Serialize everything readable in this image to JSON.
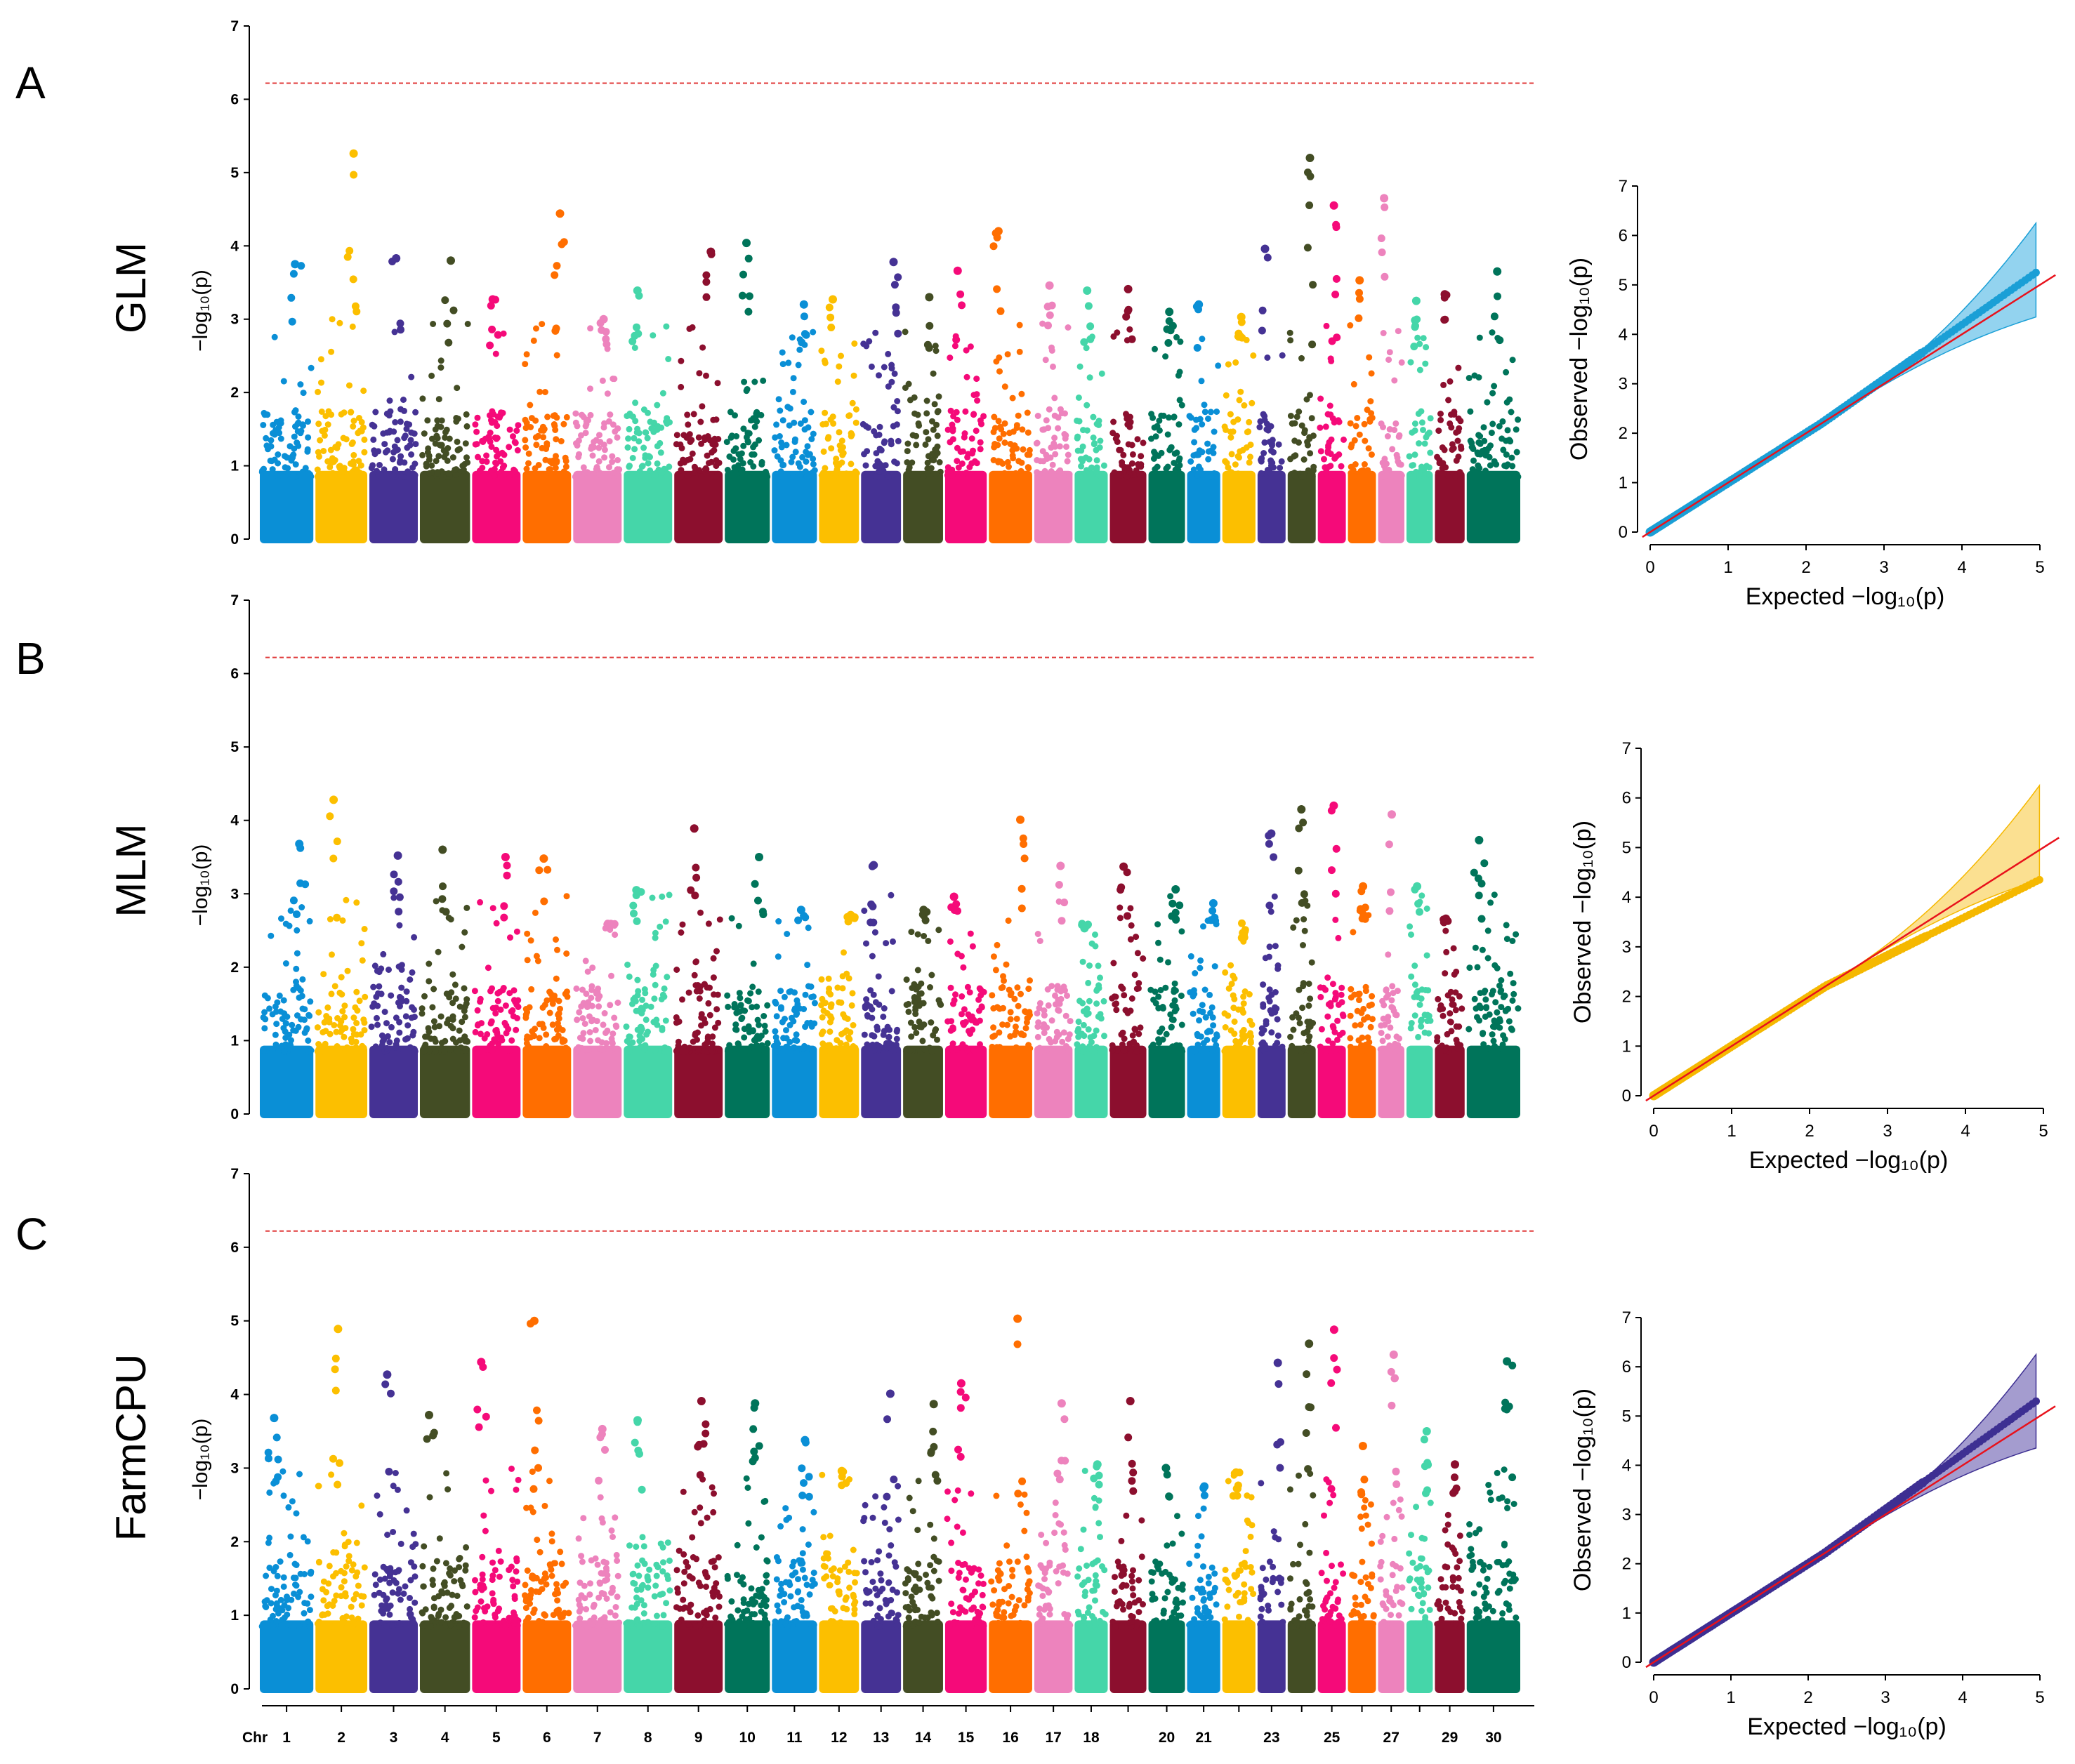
{
  "figure": {
    "chromosome_axis_title": "Chr",
    "chromosome_labels": [
      "1",
      "2",
      "3",
      "4",
      "5",
      "6",
      "7",
      "8",
      "9",
      "10",
      "11",
      "12",
      "13",
      "14",
      "15",
      "16",
      "17",
      "18",
      "",
      "20",
      "21",
      "",
      "23",
      "",
      "25",
      "",
      "27",
      "",
      "29",
      "30",
      ""
    ],
    "colors": [
      "#0a8fd6",
      "#fcbf00",
      "#453294",
      "#434d24",
      "#f50a79",
      "#ff6e00",
      "#ed83bd",
      "#45d6a9",
      "#8c0f2e",
      "#00745a"
    ],
    "y_ticks": [
      "0",
      "1",
      "2",
      "3",
      "4",
      "5",
      "6",
      "7"
    ],
    "qq_ticks_y": [
      "0",
      "1",
      "2",
      "3",
      "4",
      "5",
      "6",
      "7"
    ],
    "qq_ticks_x": [
      "0",
      "1",
      "2",
      "3",
      "4",
      "5"
    ],
    "manhattan_ylabel": "−log₁₀(p)",
    "qq_xlabel": "Expected −log₁₀(p)",
    "qq_ylabel": "Observed −log₁₀(p)"
  },
  "chart_data": [
    {
      "type": "scatter",
      "panel": "A",
      "model": "GLM",
      "threshold": 6.22,
      "ylim": [
        0,
        7
      ],
      "qq_color": "#1a9fd6",
      "qq_fill": "#3aaee2",
      "qq_deviation": 0.3,
      "peaks": [
        3.75,
        5.26,
        3.83,
        3.8,
        3.27,
        4.44,
        3.0,
        3.39,
        3.92,
        4.04,
        3.2,
        3.27,
        3.78,
        3.3,
        3.66,
        4.2,
        3.46,
        3.39,
        3.41,
        3.1,
        3.2,
        3.03,
        3.96,
        5.2,
        4.55,
        3.53,
        4.65,
        3.25,
        3.34,
        3.65
      ]
    },
    {
      "type": "scatter",
      "panel": "B",
      "model": "MLM",
      "threshold": 6.22,
      "ylim": [
        0,
        7
      ],
      "qq_color": "#f5b800",
      "qq_fill": "#f8c736",
      "qq_deviation": -0.6,
      "peaks": [
        3.68,
        4.28,
        3.52,
        3.6,
        3.5,
        3.48,
        2.58,
        3.05,
        3.89,
        3.5,
        2.78,
        2.71,
        3.39,
        2.78,
        2.96,
        4.01,
        3.38,
        2.53,
        3.37,
        3.06,
        2.87,
        2.4,
        3.82,
        4.15,
        4.2,
        3.1,
        4.08,
        3.1,
        2.66,
        3.73
      ]
    },
    {
      "type": "scatter",
      "panel": "C",
      "model": "FarmCPU",
      "threshold": 6.22,
      "ylim": [
        0,
        7
      ],
      "qq_color": "#3d2f92",
      "qq_fill": "#5a4aa8",
      "qq_deviation": 0.35,
      "peaks": [
        3.68,
        4.89,
        4.27,
        3.72,
        4.44,
        5.0,
        3.53,
        3.65,
        3.91,
        3.88,
        3.38,
        2.96,
        4.01,
        3.87,
        4.15,
        5.03,
        3.88,
        3.05,
        3.91,
        3.0,
        2.75,
        2.94,
        4.43,
        4.69,
        4.88,
        3.3,
        4.54,
        3.5,
        3.05,
        4.45
      ]
    }
  ]
}
